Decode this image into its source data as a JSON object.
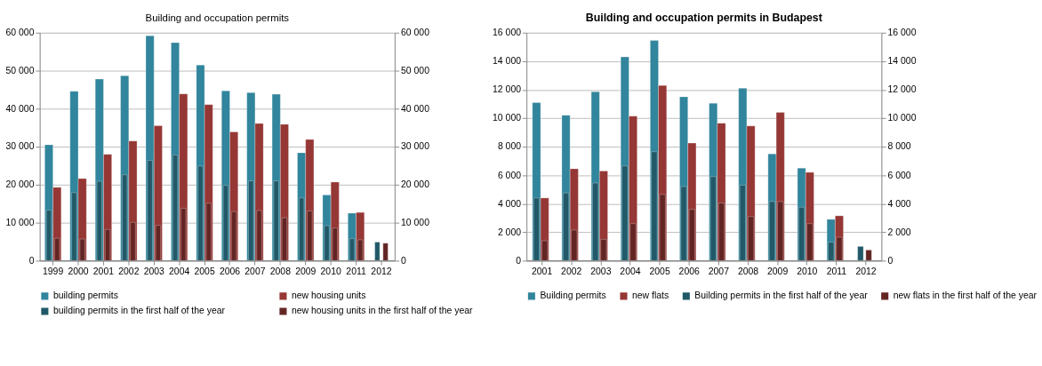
{
  "chart_data": [
    {
      "type": "bar",
      "title": "Building and occupation permits",
      "categories": [
        "1999",
        "2000",
        "2001",
        "2002",
        "2003",
        "2004",
        "2005",
        "2006",
        "2007",
        "2008",
        "2009",
        "2010",
        "2011",
        "2012"
      ],
      "series": [
        {
          "name": "building permits",
          "color": "#31859c",
          "values": [
            30500,
            44600,
            47800,
            48700,
            59200,
            57400,
            51500,
            44700,
            44200,
            43800,
            28400,
            17300,
            12500,
            null
          ]
        },
        {
          "name": "new housing units",
          "color": "#953735",
          "values": [
            19300,
            21600,
            28000,
            31500,
            35500,
            43900,
            41100,
            33900,
            36100,
            35900,
            31900,
            20700,
            12700,
            null
          ]
        },
        {
          "name": "building permits in the first half of the year",
          "color": "#215968",
          "values": [
            13300,
            17900,
            20900,
            22600,
            26400,
            27800,
            24900,
            19800,
            21000,
            21000,
            16500,
            9200,
            5800,
            4900
          ]
        },
        {
          "name": "new housing units in the first half of the year",
          "color": "#632523",
          "values": [
            5900,
            5700,
            8200,
            10100,
            9300,
            13800,
            15100,
            12900,
            13200,
            11300,
            13100,
            8600,
            5500,
            4600
          ]
        }
      ],
      "ylim": [
        0,
        60000
      ],
      "yticks": [
        0,
        {
          "value": 10000,
          "label": "10 000"
        },
        {
          "value": 20000,
          "label": "20 000"
        },
        {
          "value": 30000,
          "label": "30 000"
        },
        {
          "value": 40000,
          "label": "40 000"
        },
        {
          "value": 50000,
          "label": "50 000"
        },
        {
          "value": 60000,
          "label": "60 000"
        }
      ],
      "y2lim": [
        0,
        60000
      ],
      "y2ticks": [
        0,
        {
          "value": 10000,
          "label": "10 000"
        },
        {
          "value": 20000,
          "label": "20 000"
        },
        {
          "value": 30000,
          "label": "30 000"
        },
        {
          "value": 40000,
          "label": "40 000"
        },
        {
          "value": 50000,
          "label": "50 000"
        },
        {
          "value": 60000,
          "label": "60 000"
        }
      ],
      "grid": "y",
      "legend": "bottom"
    },
    {
      "type": "bar",
      "title": "Building and occupation permits in Budapest",
      "categories": [
        "2001",
        "2002",
        "2003",
        "2004",
        "2005",
        "2006",
        "2007",
        "2008",
        "2009",
        "2010",
        "2011",
        "2012"
      ],
      "series": [
        {
          "name": "Building permits",
          "color": "#31859c",
          "values": [
            11100,
            10200,
            11850,
            14300,
            15450,
            11500,
            11050,
            12100,
            7500,
            6500,
            2900,
            null
          ]
        },
        {
          "name": "new flats",
          "color": "#953735",
          "values": [
            4400,
            6450,
            6300,
            10150,
            12300,
            8250,
            9650,
            9450,
            10400,
            6200,
            3150,
            null
          ]
        },
        {
          "name": "Building permits in the first half of the year",
          "color": "#215968",
          "values": [
            4400,
            4750,
            5450,
            6650,
            7650,
            5200,
            5900,
            5300,
            4150,
            3750,
            1300,
            1000
          ]
        },
        {
          "name": "new flats in the first half of the year",
          "color": "#632523",
          "values": [
            1400,
            2150,
            1500,
            2600,
            4650,
            3600,
            4050,
            3100,
            4150,
            2600,
            1650,
            750
          ]
        }
      ],
      "ylim": [
        0,
        16000
      ],
      "yticks": [
        0,
        {
          "value": 2000,
          "label": "2 000"
        },
        {
          "value": 4000,
          "label": "4 000"
        },
        {
          "value": 6000,
          "label": "6 000"
        },
        {
          "value": 8000,
          "label": "8 000"
        },
        {
          "value": 10000,
          "label": "10 000"
        },
        {
          "value": 12000,
          "label": "12 000"
        },
        {
          "value": 14000,
          "label": "14 000"
        },
        {
          "value": 16000,
          "label": "16 000"
        }
      ],
      "y2lim": [
        0,
        16000
      ],
      "y2ticks": [
        0,
        {
          "value": 2000,
          "label": "2 000"
        },
        {
          "value": 4000,
          "label": "4 000"
        },
        {
          "value": 6000,
          "label": "6 000"
        },
        {
          "value": 8000,
          "label": "8 000"
        },
        {
          "value": 10000,
          "label": "10 000"
        },
        {
          "value": 12000,
          "label": "12 000"
        },
        {
          "value": 14000,
          "label": "14 000"
        },
        {
          "value": 16000,
          "label": "16 000"
        }
      ],
      "grid": "y",
      "legend": "bottom"
    }
  ]
}
